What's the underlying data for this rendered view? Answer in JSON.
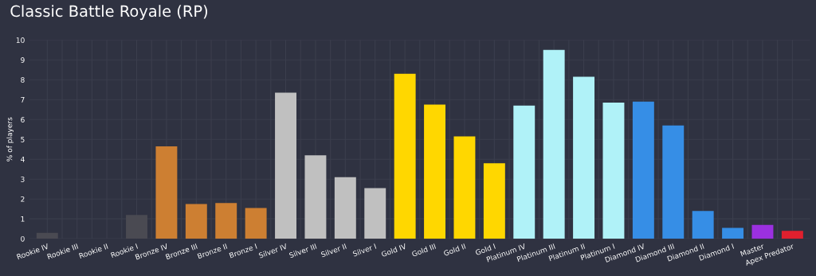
{
  "chart_data": {
    "type": "bar",
    "title": "Classic Battle Royale (RP)",
    "ylabel": "% of players",
    "categories": [
      "Rookie IV",
      "Rookie III",
      "Rookie II",
      "Rookie I",
      "Bronze IV",
      "Bronze III",
      "Bronze II",
      "Bronze I",
      "Silver IV",
      "Silver III",
      "Silver II",
      "Silver I",
      "Gold IV",
      "Gold III",
      "Gold II",
      "Gold I",
      "Platinum IV",
      "Platinum III",
      "Platinum II",
      "Platinum I",
      "Diamond IV",
      "Diamond III",
      "Diamond II",
      "Diamond I",
      "Master",
      "Apex Predator"
    ],
    "values": [
      0.3,
      0,
      0,
      1.2,
      4.65,
      1.75,
      1.8,
      1.55,
      7.35,
      4.2,
      3.1,
      2.55,
      8.3,
      6.75,
      5.15,
      3.8,
      6.7,
      9.5,
      8.15,
      6.85,
      6.9,
      5.7,
      1.4,
      0.55,
      0.7,
      0.4
    ],
    "colors": [
      "#4a4a52",
      "#4a4a52",
      "#4a4a52",
      "#4a4a52",
      "#cd7f32",
      "#cd7f32",
      "#cd7f32",
      "#cd7f32",
      "#c0c0c0",
      "#c0c0c0",
      "#c0c0c0",
      "#c0c0c0",
      "#ffd700",
      "#ffd700",
      "#ffd700",
      "#ffd700",
      "#b0f2f8",
      "#b0f2f8",
      "#b0f2f8",
      "#b0f2f8",
      "#368ee6",
      "#368ee6",
      "#368ee6",
      "#368ee6",
      "#9b30e0",
      "#e0202e"
    ],
    "ylim": [
      0,
      10
    ],
    "yticks": [
      0,
      1,
      2,
      3,
      4,
      5,
      6,
      7,
      8,
      9,
      10
    ],
    "grid": true,
    "legend": false
  }
}
